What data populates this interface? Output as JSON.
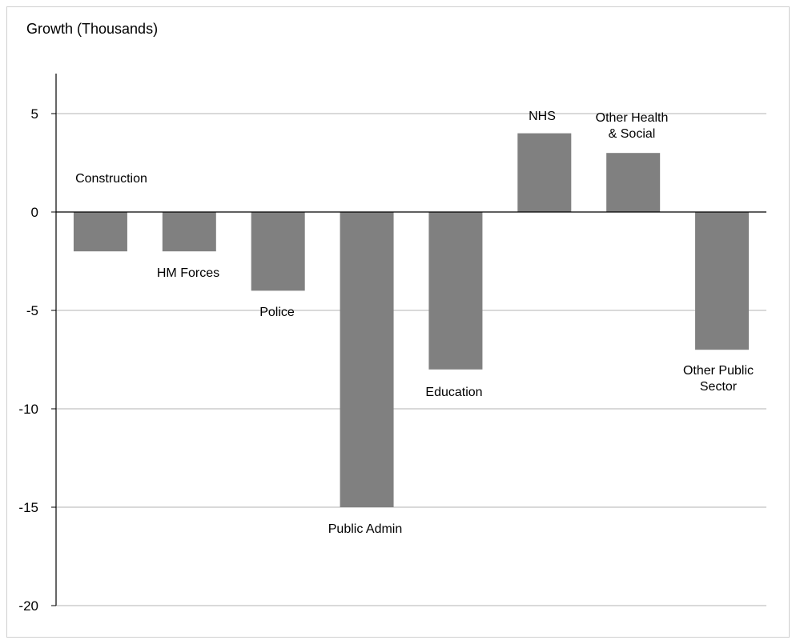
{
  "chart_data": {
    "type": "bar",
    "title": "",
    "xlabel": "",
    "ylabel": "Growth (Thousands)",
    "categories": [
      "Construction",
      "HM Forces",
      "Police",
      "Public Admin",
      "Education",
      "NHS",
      "Other Health & Social",
      "Other Public Sector"
    ],
    "category_label_lines": [
      [
        "Construction"
      ],
      [
        "HM Forces"
      ],
      [
        "Police"
      ],
      [
        "Public Admin"
      ],
      [
        "Education"
      ],
      [
        "NHS"
      ],
      [
        "Other Health",
        "& Social"
      ],
      [
        "Other Public",
        "Sector"
      ]
    ],
    "values": [
      -2,
      -2,
      -4,
      -15,
      -8,
      4,
      3,
      -7
    ],
    "ylim": [
      -20,
      7
    ],
    "yticks": [
      5,
      0,
      -5,
      -10,
      -15,
      -20
    ],
    "ytick_labels": [
      "5",
      "0",
      "-5",
      "-10",
      "-15",
      "-20"
    ],
    "grid": true,
    "bar_color": "#808080",
    "grid_color": "#b3b3b3"
  }
}
